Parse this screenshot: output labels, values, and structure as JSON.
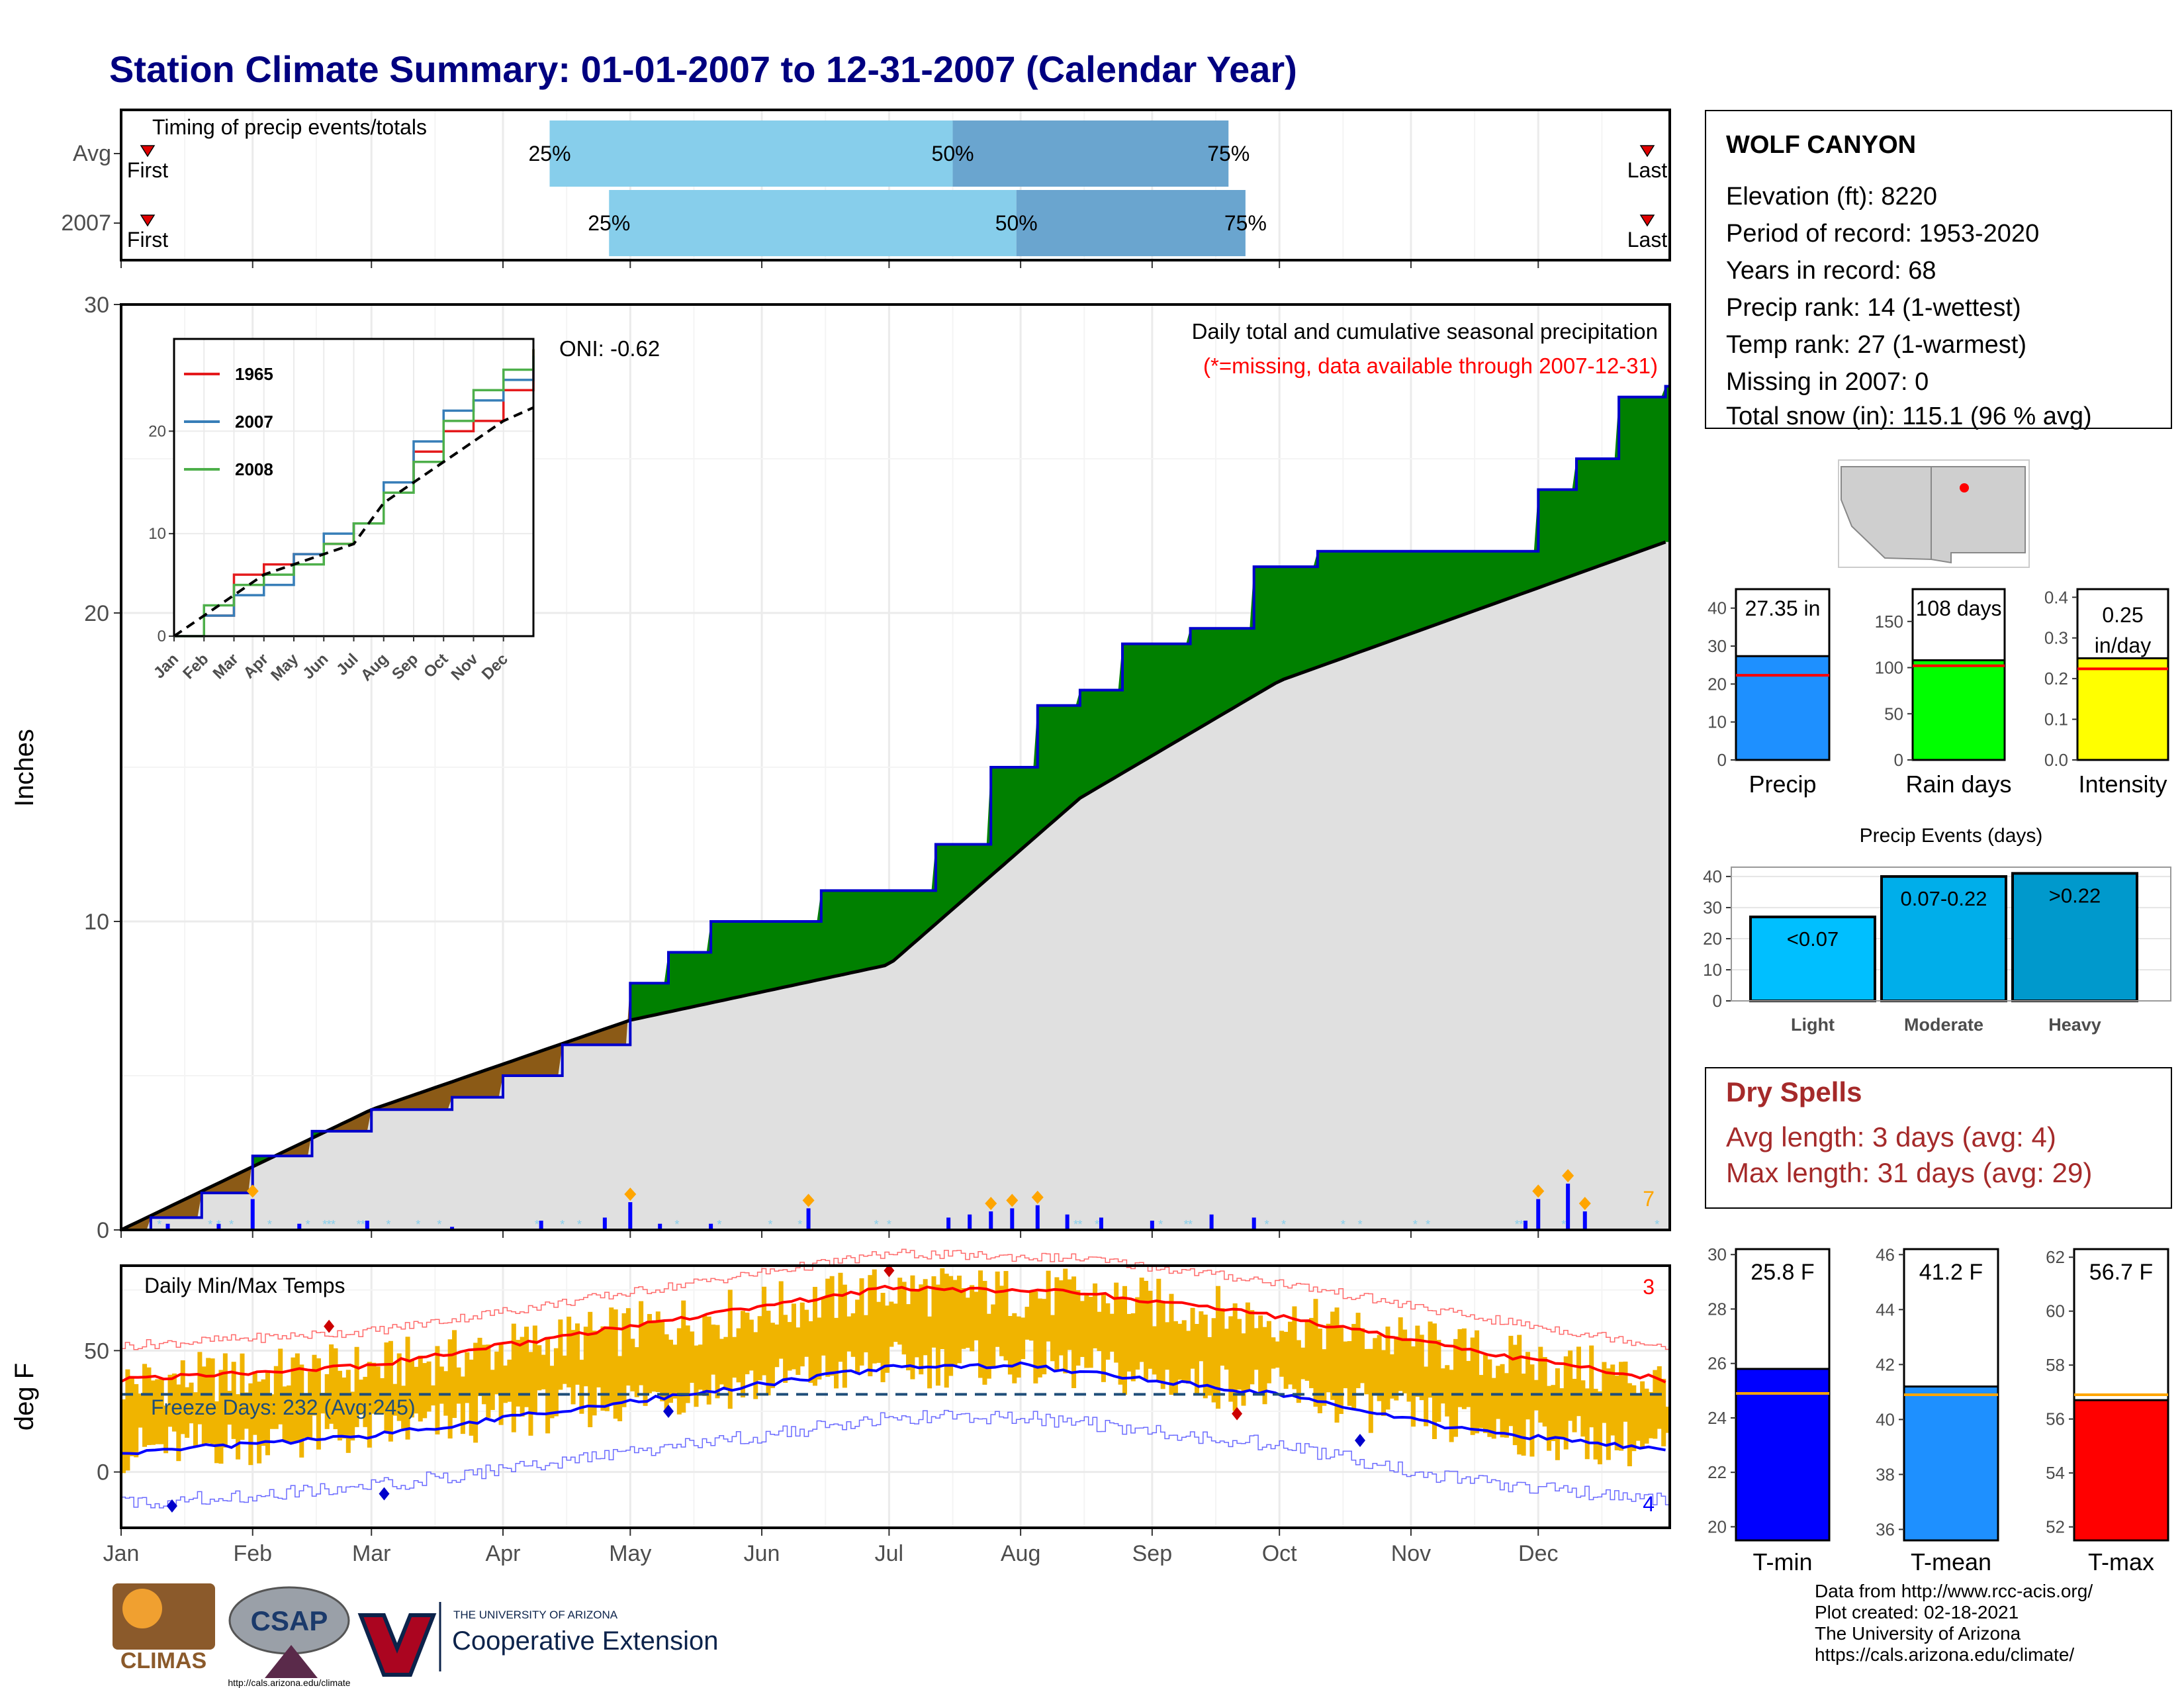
{
  "title": "Station Climate Summary: 01-01-2007 to 12-31-2007 (Calendar Year)",
  "station": {
    "name": "WOLF CANYON",
    "lines": [
      "Elevation (ft): 8220",
      "Period of record: 1953-2020",
      "Years in record: 68",
      "Precip rank: 14 (1-wettest)",
      "Temp rank: 27 (1-warmest)",
      "Missing in 2007: 0",
      "Total snow (in): 115.1 (96 % avg)"
    ]
  },
  "dry_spells": {
    "title": "Dry Spells",
    "avg": "Avg length: 3 days (avg: 4)",
    "max": "Max length: 31 days (avg: 29)"
  },
  "credits": [
    "Data from http://www.rcc-acis.org/",
    "Plot created: 02-18-2021",
    "The University of Arizona",
    "https://cals.arizona.edu/climate/"
  ],
  "logos": {
    "climas": "CLIMAS",
    "csap": "CSAP",
    "csap_url": "http://cals.arizona.edu/climate",
    "ua_small": "THE UNIVERSITY OF ARIZONA",
    "ua_big": "Cooperative Extension"
  },
  "colors": {
    "title": "#000080",
    "surplus": "#008000",
    "deficit": "#8b5a16",
    "normal_area": "#e0e0e0",
    "cum_line": "#0000cc",
    "temp_bar": "#f0b400",
    "tmax_norm": "#ff0000",
    "tmin_norm": "#0000ff",
    "dry_spell": "#a52a2a"
  },
  "chart_data": [
    {
      "id": "timing",
      "type": "bar",
      "title": "Timing of precip events/totals",
      "rows": [
        {
          "label": "Avg",
          "q25": "04-12",
          "q50": "07-16",
          "q75": "09-19",
          "first": "First",
          "last": "Last"
        },
        {
          "label": "2007",
          "q25": "04-26",
          "q50": "07-31",
          "q75": "09-23",
          "first": "First",
          "last": "Last"
        }
      ],
      "marker_labels": [
        "25%",
        "50%",
        "75%"
      ]
    },
    {
      "id": "precip",
      "type": "area",
      "title": "Daily total and cumulative seasonal precipitation",
      "subtitle": "(*=missing, data available through 2007-12-31)",
      "ylabel": "Inches",
      "ylim": [
        0,
        30
      ],
      "yticks": [
        0,
        10,
        20,
        30
      ],
      "annotation": "ONI: -0.62",
      "count_label": "7",
      "cumulative_2007": [
        {
          "date": "01-01",
          "value": 0.0
        },
        {
          "date": "01-08",
          "value": 0.4
        },
        {
          "date": "01-20",
          "value": 1.2
        },
        {
          "date": "02-01",
          "value": 2.4
        },
        {
          "date": "02-15",
          "value": 3.2
        },
        {
          "date": "03-01",
          "value": 3.9
        },
        {
          "date": "03-20",
          "value": 4.3
        },
        {
          "date": "04-01",
          "value": 5.0
        },
        {
          "date": "04-15",
          "value": 6.0
        },
        {
          "date": "05-01",
          "value": 8.0
        },
        {
          "date": "05-10",
          "value": 9.0
        },
        {
          "date": "05-20",
          "value": 10.0
        },
        {
          "date": "06-05",
          "value": 10.0
        },
        {
          "date": "06-15",
          "value": 11.0
        },
        {
          "date": "07-01",
          "value": 11.0
        },
        {
          "date": "07-12",
          "value": 12.5
        },
        {
          "date": "07-25",
          "value": 15.0
        },
        {
          "date": "08-05",
          "value": 17.0
        },
        {
          "date": "08-15",
          "value": 17.5
        },
        {
          "date": "08-25",
          "value": 19.0
        },
        {
          "date": "09-10",
          "value": 19.5
        },
        {
          "date": "09-25",
          "value": 21.5
        },
        {
          "date": "10-10",
          "value": 22.0
        },
        {
          "date": "11-15",
          "value": 22.0
        },
        {
          "date": "12-01",
          "value": 24.0
        },
        {
          "date": "12-10",
          "value": 25.0
        },
        {
          "date": "12-20",
          "value": 27.0
        },
        {
          "date": "12-31",
          "value": 27.35
        }
      ],
      "normal_cumulative": [
        {
          "date": "01-01",
          "value": 0.0
        },
        {
          "date": "03-01",
          "value": 3.9
        },
        {
          "date": "05-01",
          "value": 6.8
        },
        {
          "date": "07-01",
          "value": 8.6
        },
        {
          "date": "08-15",
          "value": 14.0
        },
        {
          "date": "10-01",
          "value": 17.8
        },
        {
          "date": "12-31",
          "value": 22.3
        }
      ],
      "daily_precip": [
        {
          "date": "01-12",
          "value": 0.2
        },
        {
          "date": "01-24",
          "value": 0.2
        },
        {
          "date": "02-01",
          "value": 1.0
        },
        {
          "date": "02-12",
          "value": 0.2
        },
        {
          "date": "02-28",
          "value": 0.3
        },
        {
          "date": "03-20",
          "value": 0.1
        },
        {
          "date": "04-10",
          "value": 0.3
        },
        {
          "date": "04-25",
          "value": 0.4
        },
        {
          "date": "05-01",
          "value": 0.9
        },
        {
          "date": "05-08",
          "value": 0.2
        },
        {
          "date": "05-20",
          "value": 0.2
        },
        {
          "date": "06-12",
          "value": 0.7
        },
        {
          "date": "07-15",
          "value": 0.4
        },
        {
          "date": "07-20",
          "value": 0.5
        },
        {
          "date": "07-25",
          "value": 0.6
        },
        {
          "date": "07-30",
          "value": 0.7
        },
        {
          "date": "08-05",
          "value": 0.8
        },
        {
          "date": "08-12",
          "value": 0.5
        },
        {
          "date": "08-20",
          "value": 0.4
        },
        {
          "date": "09-01",
          "value": 0.3
        },
        {
          "date": "09-15",
          "value": 0.5
        },
        {
          "date": "09-25",
          "value": 0.4
        },
        {
          "date": "11-28",
          "value": 0.3
        },
        {
          "date": "12-01",
          "value": 1.0
        },
        {
          "date": "12-08",
          "value": 1.5
        },
        {
          "date": "12-12",
          "value": 0.6
        }
      ]
    },
    {
      "id": "precip_inset",
      "type": "line",
      "ylim": [
        0,
        29
      ],
      "yticks": [
        0,
        10,
        20
      ],
      "xticks": [
        "Jan",
        "Feb",
        "Mar",
        "Apr",
        "May",
        "Jun",
        "Jul",
        "Aug",
        "Sep",
        "Oct",
        "Nov",
        "Dec"
      ],
      "series": [
        {
          "name": "1965",
          "color": "#e41a1c",
          "values": [
            0,
            2,
            6,
            7,
            8,
            9,
            11,
            15,
            18,
            20,
            21,
            24,
            28
          ]
        },
        {
          "name": "2007",
          "color": "#377eb8",
          "values": [
            0,
            2,
            4,
            5,
            8,
            10,
            11,
            15,
            19,
            22,
            23,
            25,
            27.35
          ]
        },
        {
          "name": "2008",
          "color": "#4daf4a",
          "values": [
            0,
            3,
            5,
            6,
            7,
            9,
            11,
            14,
            17,
            21,
            24,
            26,
            28
          ]
        },
        {
          "name": "",
          "color": "#000000",
          "dashed": true,
          "values": [
            0,
            2,
            4,
            6,
            7,
            8,
            9,
            13,
            15,
            17,
            19,
            21,
            22.3
          ]
        }
      ]
    },
    {
      "id": "temps",
      "type": "bar",
      "title": "Daily Min/Max Temps",
      "ylabel": "deg F",
      "ylim": [
        -23,
        85
      ],
      "yticks": [
        0,
        50
      ],
      "xticks": [
        "Jan",
        "Feb",
        "Mar",
        "Apr",
        "May",
        "Jun",
        "Jul",
        "Aug",
        "Sep",
        "Oct",
        "Nov",
        "Dec"
      ],
      "freeze_label": "Freeze Days: 232 (Avg:245)",
      "freeze_line": 32,
      "count_max": "3",
      "count_min": "4",
      "tmax_normal": [
        {
          "date": "01-01",
          "value": 38
        },
        {
          "date": "03-01",
          "value": 44
        },
        {
          "date": "05-01",
          "value": 60
        },
        {
          "date": "07-01",
          "value": 76
        },
        {
          "date": "08-15",
          "value": 74
        },
        {
          "date": "10-01",
          "value": 64
        },
        {
          "date": "11-15",
          "value": 50
        },
        {
          "date": "12-31",
          "value": 38
        }
      ],
      "tmin_normal": [
        {
          "date": "01-01",
          "value": 8
        },
        {
          "date": "03-01",
          "value": 15
        },
        {
          "date": "05-01",
          "value": 29
        },
        {
          "date": "07-01",
          "value": 43
        },
        {
          "date": "08-01",
          "value": 44
        },
        {
          "date": "10-01",
          "value": 32
        },
        {
          "date": "11-15",
          "value": 17
        },
        {
          "date": "12-31",
          "value": 9
        }
      ]
    },
    {
      "id": "precip_totals",
      "type": "bar",
      "panels": [
        {
          "name": "Precip",
          "value": 27.35,
          "label": "27.35 in",
          "normal": 22.3,
          "ylim": [
            0,
            45
          ],
          "yticks": [
            0,
            10,
            20,
            30,
            40
          ],
          "color": "#1e90ff"
        },
        {
          "name": "Rain days",
          "value": 108,
          "label": "108 days",
          "normal": 102,
          "ylim": [
            0,
            185
          ],
          "yticks": [
            0,
            50,
            100,
            150
          ],
          "color": "#00ff00"
        },
        {
          "name": "Intensity",
          "value": 0.25,
          "label": "0.25 in/day",
          "normal": 0.224,
          "ylim": [
            0,
            0.42
          ],
          "yticks": [
            0.0,
            0.1,
            0.2,
            0.3,
            0.4
          ],
          "color": "#ffff00"
        }
      ]
    },
    {
      "id": "precip_events",
      "type": "bar",
      "title": "Precip Events (days)",
      "categories": [
        "Light",
        "Moderate",
        "Heavy"
      ],
      "values": [
        27,
        40,
        41
      ],
      "bar_labels": [
        "<0.07",
        "0.07-0.22",
        ">0.22"
      ],
      "ylim": [
        0,
        43
      ],
      "yticks": [
        0,
        10,
        20,
        30,
        40
      ]
    },
    {
      "id": "temp_summary",
      "type": "bar",
      "panels": [
        {
          "name": "T-min",
          "value": 25.8,
          "label": "25.8 F",
          "normal": 24.9,
          "ylim": [
            19.5,
            30.2
          ],
          "yticks": [
            20,
            22,
            24,
            26,
            28,
            30
          ],
          "color": "#0000ff"
        },
        {
          "name": "T-mean",
          "value": 41.2,
          "label": "41.2 F",
          "normal": 40.9,
          "ylim": [
            35.6,
            46.2
          ],
          "yticks": [
            36,
            38,
            40,
            42,
            44,
            46
          ],
          "color": "#1e90ff"
        },
        {
          "name": "T-max",
          "value": 56.7,
          "label": "56.7 F",
          "normal": 56.9,
          "ylim": [
            51.5,
            62.3
          ],
          "yticks": [
            52,
            54,
            56,
            58,
            60,
            62
          ],
          "color": "#ff0000"
        }
      ]
    }
  ]
}
